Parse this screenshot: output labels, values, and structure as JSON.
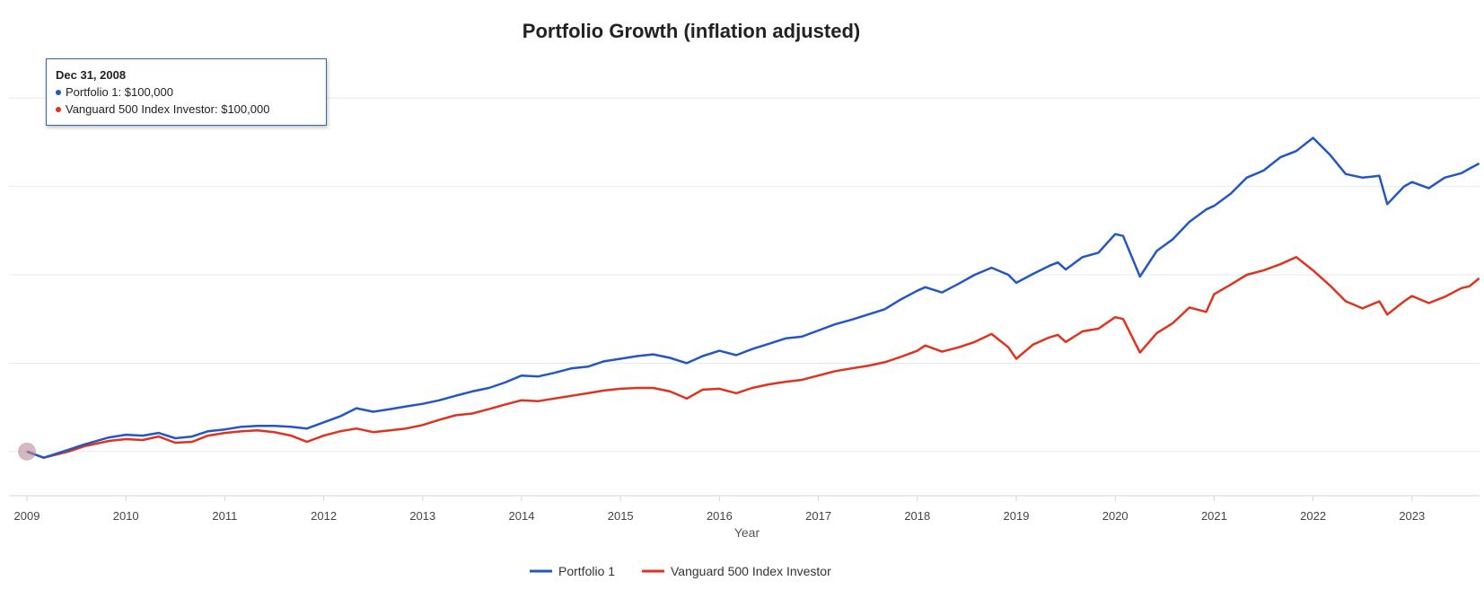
{
  "chart_data": {
    "type": "line",
    "title": "Portfolio Growth (inflation adjusted)",
    "xlabel": "Year",
    "ylabel": "",
    "x_ticks": [
      "2009",
      "2010",
      "2011",
      "2012",
      "2013",
      "2014",
      "2015",
      "2016",
      "2017",
      "2018",
      "2019",
      "2020",
      "2021",
      "2022",
      "2023"
    ],
    "x_range": [
      2009.0,
      2023.68
    ],
    "y_range": [
      50000,
      550000
    ],
    "y_gridlines": [
      100000,
      200000,
      300000,
      400000,
      500000
    ],
    "y_tick_labels_visible": false,
    "grid": true,
    "legend_position": "bottom",
    "series": [
      {
        "name": "Portfolio 1",
        "color": "#2456c8",
        "points": [
          [
            2009.0,
            100000
          ],
          [
            2009.17,
            93000
          ],
          [
            2009.42,
            102000
          ],
          [
            2009.58,
            108000
          ],
          [
            2009.83,
            116000
          ],
          [
            2010.0,
            119000
          ],
          [
            2010.17,
            118000
          ],
          [
            2010.33,
            121000
          ],
          [
            2010.5,
            115000
          ],
          [
            2010.67,
            117000
          ],
          [
            2010.83,
            123000
          ],
          [
            2011.0,
            125000
          ],
          [
            2011.17,
            128000
          ],
          [
            2011.33,
            129000
          ],
          [
            2011.5,
            129000
          ],
          [
            2011.67,
            128000
          ],
          [
            2011.83,
            126000
          ],
          [
            2012.0,
            133000
          ],
          [
            2012.17,
            140000
          ],
          [
            2012.33,
            149000
          ],
          [
            2012.5,
            145000
          ],
          [
            2012.67,
            148000
          ],
          [
            2012.83,
            151000
          ],
          [
            2013.0,
            154000
          ],
          [
            2013.17,
            158000
          ],
          [
            2013.33,
            163000
          ],
          [
            2013.5,
            168000
          ],
          [
            2013.67,
            172000
          ],
          [
            2013.83,
            178000
          ],
          [
            2014.0,
            186000
          ],
          [
            2014.17,
            185000
          ],
          [
            2014.33,
            189000
          ],
          [
            2014.5,
            194000
          ],
          [
            2014.67,
            196000
          ],
          [
            2014.83,
            202000
          ],
          [
            2015.0,
            205000
          ],
          [
            2015.17,
            208000
          ],
          [
            2015.33,
            210000
          ],
          [
            2015.5,
            206000
          ],
          [
            2015.67,
            200000
          ],
          [
            2015.83,
            208000
          ],
          [
            2016.0,
            214000
          ],
          [
            2016.17,
            209000
          ],
          [
            2016.33,
            216000
          ],
          [
            2016.5,
            222000
          ],
          [
            2016.67,
            228000
          ],
          [
            2016.83,
            230000
          ],
          [
            2017.0,
            237000
          ],
          [
            2017.17,
            244000
          ],
          [
            2017.33,
            249000
          ],
          [
            2017.5,
            255000
          ],
          [
            2017.67,
            261000
          ],
          [
            2017.83,
            272000
          ],
          [
            2018.0,
            282000
          ],
          [
            2018.08,
            286000
          ],
          [
            2018.25,
            280000
          ],
          [
            2018.42,
            290000
          ],
          [
            2018.58,
            300000
          ],
          [
            2018.75,
            308000
          ],
          [
            2018.92,
            300000
          ],
          [
            2019.0,
            291000
          ],
          [
            2019.17,
            301000
          ],
          [
            2019.33,
            310000
          ],
          [
            2019.42,
            314000
          ],
          [
            2019.5,
            306000
          ],
          [
            2019.67,
            320000
          ],
          [
            2019.83,
            325000
          ],
          [
            2020.0,
            346000
          ],
          [
            2020.08,
            344000
          ],
          [
            2020.25,
            298000
          ],
          [
            2020.42,
            327000
          ],
          [
            2020.58,
            340000
          ],
          [
            2020.75,
            360000
          ],
          [
            2020.92,
            374000
          ],
          [
            2021.0,
            378000
          ],
          [
            2021.17,
            392000
          ],
          [
            2021.33,
            410000
          ],
          [
            2021.5,
            418000
          ],
          [
            2021.67,
            433000
          ],
          [
            2021.83,
            440000
          ],
          [
            2022.0,
            455000
          ],
          [
            2022.17,
            436000
          ],
          [
            2022.33,
            414000
          ],
          [
            2022.5,
            410000
          ],
          [
            2022.67,
            412000
          ],
          [
            2022.75,
            380000
          ],
          [
            2022.92,
            400000
          ],
          [
            2023.0,
            405000
          ],
          [
            2023.17,
            398000
          ],
          [
            2023.33,
            410000
          ],
          [
            2023.5,
            415000
          ],
          [
            2023.58,
            420000
          ],
          [
            2023.68,
            426000
          ]
        ]
      },
      {
        "name": "Vanguard 500 Index Investor",
        "color": "#e0321e",
        "points": [
          [
            2009.0,
            100000
          ],
          [
            2009.17,
            93000
          ],
          [
            2009.42,
            100000
          ],
          [
            2009.58,
            106000
          ],
          [
            2009.83,
            112000
          ],
          [
            2010.0,
            114000
          ],
          [
            2010.17,
            113000
          ],
          [
            2010.33,
            117000
          ],
          [
            2010.5,
            110000
          ],
          [
            2010.67,
            111000
          ],
          [
            2010.83,
            118000
          ],
          [
            2011.0,
            121000
          ],
          [
            2011.17,
            123000
          ],
          [
            2011.33,
            124000
          ],
          [
            2011.5,
            122000
          ],
          [
            2011.67,
            118000
          ],
          [
            2011.83,
            111000
          ],
          [
            2012.0,
            118000
          ],
          [
            2012.17,
            123000
          ],
          [
            2012.33,
            126000
          ],
          [
            2012.5,
            122000
          ],
          [
            2012.67,
            124000
          ],
          [
            2012.83,
            126000
          ],
          [
            2013.0,
            130000
          ],
          [
            2013.17,
            136000
          ],
          [
            2013.33,
            141000
          ],
          [
            2013.5,
            143000
          ],
          [
            2013.67,
            148000
          ],
          [
            2013.83,
            153000
          ],
          [
            2014.0,
            158000
          ],
          [
            2014.17,
            157000
          ],
          [
            2014.33,
            160000
          ],
          [
            2014.5,
            163000
          ],
          [
            2014.67,
            166000
          ],
          [
            2014.83,
            169000
          ],
          [
            2015.0,
            171000
          ],
          [
            2015.17,
            172000
          ],
          [
            2015.33,
            172000
          ],
          [
            2015.5,
            168000
          ],
          [
            2015.67,
            160000
          ],
          [
            2015.83,
            170000
          ],
          [
            2016.0,
            171000
          ],
          [
            2016.17,
            166000
          ],
          [
            2016.33,
            172000
          ],
          [
            2016.5,
            176000
          ],
          [
            2016.67,
            179000
          ],
          [
            2016.83,
            181000
          ],
          [
            2017.0,
            186000
          ],
          [
            2017.17,
            191000
          ],
          [
            2017.33,
            194000
          ],
          [
            2017.5,
            197000
          ],
          [
            2017.67,
            201000
          ],
          [
            2017.83,
            207000
          ],
          [
            2018.0,
            214000
          ],
          [
            2018.08,
            220000
          ],
          [
            2018.25,
            213000
          ],
          [
            2018.42,
            218000
          ],
          [
            2018.58,
            224000
          ],
          [
            2018.75,
            233000
          ],
          [
            2018.92,
            218000
          ],
          [
            2019.0,
            205000
          ],
          [
            2019.17,
            221000
          ],
          [
            2019.33,
            229000
          ],
          [
            2019.42,
            232000
          ],
          [
            2019.5,
            224000
          ],
          [
            2019.67,
            236000
          ],
          [
            2019.83,
            239000
          ],
          [
            2020.0,
            252000
          ],
          [
            2020.08,
            250000
          ],
          [
            2020.25,
            212000
          ],
          [
            2020.42,
            234000
          ],
          [
            2020.58,
            245000
          ],
          [
            2020.75,
            263000
          ],
          [
            2020.92,
            258000
          ],
          [
            2021.0,
            278000
          ],
          [
            2021.17,
            289000
          ],
          [
            2021.33,
            300000
          ],
          [
            2021.5,
            305000
          ],
          [
            2021.67,
            312000
          ],
          [
            2021.83,
            320000
          ],
          [
            2022.0,
            305000
          ],
          [
            2022.17,
            288000
          ],
          [
            2022.33,
            270000
          ],
          [
            2022.5,
            262000
          ],
          [
            2022.67,
            270000
          ],
          [
            2022.75,
            255000
          ],
          [
            2022.92,
            270000
          ],
          [
            2023.0,
            276000
          ],
          [
            2023.17,
            268000
          ],
          [
            2023.33,
            275000
          ],
          [
            2023.5,
            285000
          ],
          [
            2023.58,
            287000
          ],
          [
            2023.68,
            296000
          ]
        ]
      }
    ],
    "tooltip": {
      "date": "Dec 31, 2008",
      "rows": [
        {
          "label": "Portfolio 1: $100,000",
          "color": "#2456c8"
        },
        {
          "label": "Vanguard 500 Index Investor: $100,000",
          "color": "#e0321e"
        }
      ]
    },
    "colors": {
      "grid": "#e6e9ef",
      "axis": "#ccd6eb",
      "hover_marker": "#b88a96"
    }
  }
}
